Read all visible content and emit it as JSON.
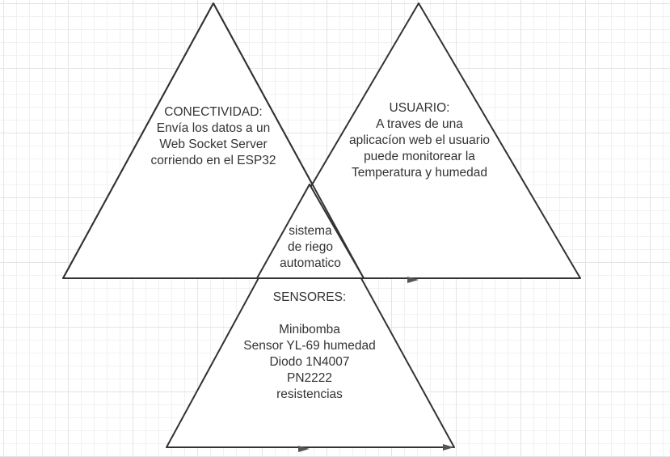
{
  "triangles": {
    "conectividad": {
      "lines": [
        "CONECTIVIDAD:",
        "Envía los datos a un",
        "Web Socket Server",
        "corriendo en el ESP32"
      ]
    },
    "usuario": {
      "lines": [
        "USUARIO:",
        "A traves de una",
        "aplicacíon web el usuario",
        "puede monitorear la",
        "Temperatura y humedad"
      ]
    },
    "centro": {
      "lines": [
        "sistema",
        "de riego",
        "automatico"
      ]
    },
    "sensores": {
      "title": "SENSORES:",
      "lines": [
        "Minibomba",
        "Sensor YL-69 humedad",
        "Diodo 1N4007",
        "PN2222",
        "resistencias"
      ]
    }
  },
  "colors": {
    "stroke": "#333333",
    "text": "#333333",
    "grid": "#e4e4e4",
    "background": "#ffffff"
  }
}
